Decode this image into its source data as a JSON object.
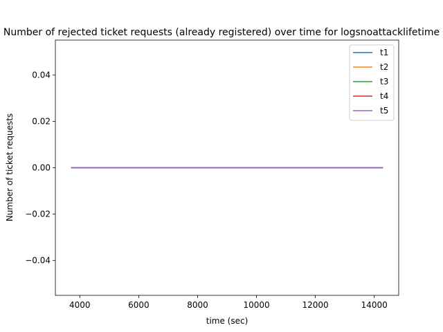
{
  "chart_data": {
    "type": "line",
    "title": "Number of rejected ticket requests (already registered) over time for logsnoattacklifetime",
    "xlabel": "time (sec)",
    "ylabel": "Number of ticket requests",
    "xlim": [
      3170,
      14830
    ],
    "ylim": [
      -0.055,
      0.055
    ],
    "xticks": [
      4000,
      6000,
      8000,
      10000,
      12000,
      14000
    ],
    "xtick_labels": [
      "4000",
      "6000",
      "8000",
      "10000",
      "12000",
      "14000"
    ],
    "yticks": [
      -0.04,
      -0.02,
      0.0,
      0.02,
      0.04
    ],
    "ytick_labels": [
      "−0.04",
      "−0.02",
      "0.00",
      "0.02",
      "0.04"
    ],
    "grid": false,
    "legend_position": "top-right",
    "series": [
      {
        "name": "t1",
        "color": "#1f77b4",
        "x": [
          3700,
          14300
        ],
        "y": [
          0,
          0
        ]
      },
      {
        "name": "t2",
        "color": "#ff7f0e",
        "x": [
          3700,
          14300
        ],
        "y": [
          0,
          0
        ]
      },
      {
        "name": "t3",
        "color": "#2ca02c",
        "x": [
          3700,
          14300
        ],
        "y": [
          0,
          0
        ]
      },
      {
        "name": "t4",
        "color": "#d62728",
        "x": [
          3700,
          14300
        ],
        "y": [
          0,
          0
        ]
      },
      {
        "name": "t5",
        "color": "#9467bd",
        "x": [
          3700,
          14300
        ],
        "y": [
          0,
          0
        ]
      }
    ]
  }
}
